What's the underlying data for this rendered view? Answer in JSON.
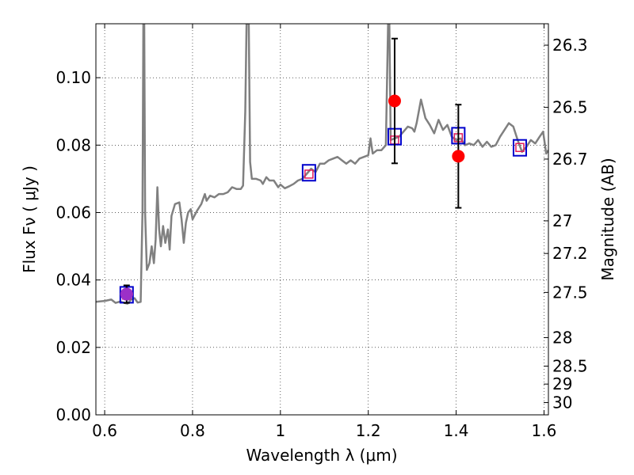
{
  "chart_data": {
    "type": "scatter",
    "xlabel": "Wavelength  λ (μm)",
    "ylabel_left": "Flux  Fν  ( μJy )",
    "ylabel_right": "Magnitude (AB)",
    "xlim": [
      0.58,
      1.61
    ],
    "ylim": [
      0.0,
      0.116
    ],
    "grid": true,
    "x_ticks": [
      0.6,
      0.8,
      1.0,
      1.2,
      1.4,
      1.6
    ],
    "x_tick_labels": [
      "0.6",
      "0.8",
      "1",
      "1.2",
      "1.4",
      "1.6"
    ],
    "y_ticks": [
      0.0,
      0.02,
      0.04,
      0.06,
      0.08,
      0.1
    ],
    "y_tick_labels": [
      "0.00",
      "0.02",
      "0.04",
      "0.06",
      "0.08",
      "0.10"
    ],
    "mag_ticks": [
      26.3,
      26.5,
      26.7,
      27,
      27.2,
      27.5,
      28,
      28.5,
      29,
      30
    ],
    "mag_tick_labels": [
      "26.3",
      "26.5",
      "26.7",
      "27",
      "27.2",
      "27.5",
      "28",
      "28.5",
      "29",
      "30"
    ],
    "series": [
      {
        "kind": "line",
        "color": "#808080",
        "points": [
          [
            0.58,
            0.0335
          ],
          [
            0.6,
            0.0338
          ],
          [
            0.615,
            0.0342
          ],
          [
            0.625,
            0.0332
          ],
          [
            0.635,
            0.0336
          ],
          [
            0.645,
            0.0332
          ],
          [
            0.652,
            0.033
          ],
          [
            0.66,
            0.0342
          ],
          [
            0.668,
            0.0346
          ],
          [
            0.675,
            0.0333
          ],
          [
            0.682,
            0.0335
          ],
          [
            0.686,
            0.06
          ],
          [
            0.688,
            0.116
          ],
          [
            0.69,
            0.116
          ],
          [
            0.692,
            0.06
          ],
          [
            0.696,
            0.043
          ],
          [
            0.702,
            0.045
          ],
          [
            0.707,
            0.05
          ],
          [
            0.712,
            0.045
          ],
          [
            0.716,
            0.052
          ],
          [
            0.72,
            0.0675
          ],
          [
            0.724,
            0.055
          ],
          [
            0.728,
            0.05
          ],
          [
            0.733,
            0.056
          ],
          [
            0.738,
            0.051
          ],
          [
            0.744,
            0.055
          ],
          [
            0.748,
            0.049
          ],
          [
            0.752,
            0.059
          ],
          [
            0.76,
            0.0625
          ],
          [
            0.77,
            0.063
          ],
          [
            0.775,
            0.058
          ],
          [
            0.78,
            0.051
          ],
          [
            0.785,
            0.057
          ],
          [
            0.79,
            0.06
          ],
          [
            0.796,
            0.061
          ],
          [
            0.8,
            0.058
          ],
          [
            0.81,
            0.0605
          ],
          [
            0.82,
            0.0625
          ],
          [
            0.828,
            0.0655
          ],
          [
            0.832,
            0.0635
          ],
          [
            0.84,
            0.065
          ],
          [
            0.85,
            0.0645
          ],
          [
            0.86,
            0.0655
          ],
          [
            0.87,
            0.0655
          ],
          [
            0.88,
            0.066
          ],
          [
            0.89,
            0.0675
          ],
          [
            0.9,
            0.067
          ],
          [
            0.91,
            0.067
          ],
          [
            0.915,
            0.068
          ],
          [
            0.92,
            0.09
          ],
          [
            0.923,
            0.116
          ],
          [
            0.928,
            0.116
          ],
          [
            0.931,
            0.075
          ],
          [
            0.935,
            0.07
          ],
          [
            0.945,
            0.07
          ],
          [
            0.955,
            0.0695
          ],
          [
            0.96,
            0.0685
          ],
          [
            0.968,
            0.0705
          ],
          [
            0.975,
            0.0695
          ],
          [
            0.985,
            0.0695
          ],
          [
            0.995,
            0.0675
          ],
          [
            1.0,
            0.0683
          ],
          [
            1.01,
            0.0672
          ],
          [
            1.02,
            0.0678
          ],
          [
            1.03,
            0.0685
          ],
          [
            1.04,
            0.0695
          ],
          [
            1.05,
            0.07
          ],
          [
            1.06,
            0.0715
          ],
          [
            1.07,
            0.073
          ],
          [
            1.08,
            0.072
          ],
          [
            1.09,
            0.0745
          ],
          [
            1.1,
            0.0745
          ],
          [
            1.11,
            0.0755
          ],
          [
            1.12,
            0.076
          ],
          [
            1.13,
            0.0765
          ],
          [
            1.14,
            0.0755
          ],
          [
            1.15,
            0.0745
          ],
          [
            1.16,
            0.0755
          ],
          [
            1.17,
            0.0745
          ],
          [
            1.18,
            0.076
          ],
          [
            1.19,
            0.0765
          ],
          [
            1.2,
            0.077
          ],
          [
            1.205,
            0.082
          ],
          [
            1.21,
            0.0775
          ],
          [
            1.22,
            0.0785
          ],
          [
            1.23,
            0.0785
          ],
          [
            1.24,
            0.08
          ],
          [
            1.245,
            0.116
          ],
          [
            1.248,
            0.116
          ],
          [
            1.251,
            0.0815
          ],
          [
            1.26,
            0.082
          ],
          [
            1.27,
            0.0825
          ],
          [
            1.28,
            0.084
          ],
          [
            1.29,
            0.0855
          ],
          [
            1.3,
            0.085
          ],
          [
            1.305,
            0.084
          ],
          [
            1.31,
            0.0865
          ],
          [
            1.32,
            0.0935
          ],
          [
            1.33,
            0.088
          ],
          [
            1.34,
            0.086
          ],
          [
            1.35,
            0.0835
          ],
          [
            1.36,
            0.0875
          ],
          [
            1.37,
            0.0845
          ],
          [
            1.38,
            0.086
          ],
          [
            1.39,
            0.0825
          ],
          [
            1.4,
            0.0815
          ],
          [
            1.41,
            0.082
          ],
          [
            1.42,
            0.08
          ],
          [
            1.43,
            0.0805
          ],
          [
            1.44,
            0.08
          ],
          [
            1.45,
            0.0815
          ],
          [
            1.46,
            0.0795
          ],
          [
            1.47,
            0.081
          ],
          [
            1.48,
            0.0795
          ],
          [
            1.49,
            0.08
          ],
          [
            1.5,
            0.0825
          ],
          [
            1.51,
            0.0845
          ],
          [
            1.52,
            0.0865
          ],
          [
            1.53,
            0.0855
          ],
          [
            1.54,
            0.0815
          ],
          [
            1.55,
            0.078
          ],
          [
            1.56,
            0.0795
          ],
          [
            1.57,
            0.0815
          ],
          [
            1.58,
            0.0805
          ],
          [
            1.59,
            0.0825
          ],
          [
            1.598,
            0.084
          ],
          [
            1.605,
            0.0775
          ],
          [
            1.61,
            0.0785
          ]
        ]
      },
      {
        "kind": "model-points",
        "color": "#e0195a",
        "points": [
          [
            0.65,
            0.0355
          ],
          [
            1.065,
            0.0714
          ],
          [
            1.26,
            0.0815
          ],
          [
            1.405,
            0.0822
          ],
          [
            1.545,
            0.0793
          ]
        ]
      },
      {
        "kind": "squares",
        "color": "#0000cc",
        "points": [
          [
            0.65,
            0.0356
          ],
          [
            1.065,
            0.0718
          ],
          [
            1.26,
            0.0825
          ],
          [
            1.405,
            0.0828
          ],
          [
            1.545,
            0.0792
          ]
        ]
      },
      {
        "kind": "errorbar",
        "color": "#ff0000",
        "points": [
          [
            0.65,
            0.0358,
            0.0026
          ],
          [
            1.26,
            0.0931,
            0.0185
          ],
          [
            1.405,
            0.0767,
            0.0153
          ]
        ]
      }
    ],
    "highlight_point": {
      "x": 0.65,
      "y": 0.0358,
      "color": "#9b30c8"
    }
  }
}
